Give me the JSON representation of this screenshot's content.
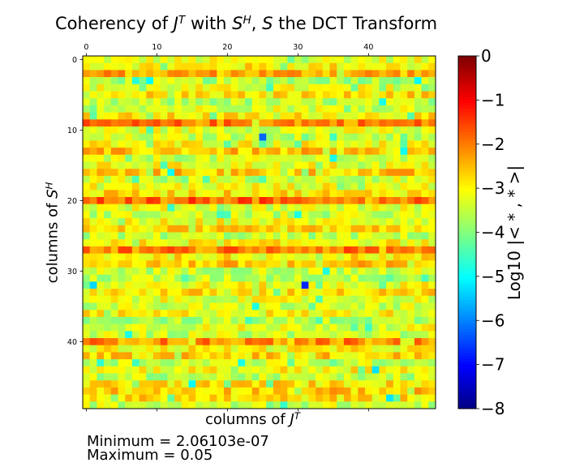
{
  "chart_data": {
    "type": "heatmap",
    "title": {
      "prefix": "Coherency of ",
      "j": "J",
      "j_sup": "T",
      "mid": " with ",
      "s": "S",
      "s_sup": "H",
      "comma": ", ",
      "s2": "S",
      "suffix": " the DCT Transform"
    },
    "xlabel": {
      "prefix": "columns of ",
      "var": "J",
      "sup": "T"
    },
    "ylabel": {
      "prefix": "columns of ",
      "var": "S",
      "sup": "H"
    },
    "colorbar": {
      "label": "Log10 |< * , * >|",
      "range": [
        -8,
        0
      ],
      "ticks": [
        0,
        -1,
        -2,
        -3,
        -4,
        -5,
        -6,
        -7,
        -8
      ],
      "tick_labels": [
        "0",
        "−1",
        "−2",
        "−3",
        "−4",
        "−5",
        "−6",
        "−7",
        "−8"
      ],
      "colormap": "jet"
    },
    "x_ticks": [
      0,
      10,
      20,
      30,
      40
    ],
    "y_ticks": [
      0,
      10,
      20,
      30,
      40
    ],
    "x_tick_position": "top",
    "grid": false,
    "n_rows": 50,
    "n_cols": 50,
    "row_profile": [
      -3.2,
      -2.9,
      -2.3,
      -3.6,
      -3.2,
      -2.8,
      -3.6,
      -3.2,
      -2.9,
      -2.0,
      -3.2,
      -3.4,
      -3.0,
      -2.6,
      -3.4,
      -3.1,
      -2.6,
      -3.3,
      -3.1,
      -2.8,
      -1.8,
      -3.2,
      -3.4,
      -3.1,
      -2.8,
      -3.5,
      -3.0,
      -2.0,
      -2.9,
      -2.6,
      -3.4,
      -3.5,
      -3.1,
      -2.8,
      -3.2,
      -3.4,
      -3.0,
      -3.6,
      -3.2,
      -3.4,
      -2.1,
      -3.0,
      -2.7,
      -3.4,
      -3.0,
      -3.5,
      -2.8,
      -2.6,
      -2.8,
      -3.4
    ],
    "notable_cells": [
      {
        "row": 11,
        "col": 25,
        "value": -6.2
      },
      {
        "row": 32,
        "col": 31,
        "value": -6.7
      },
      {
        "row": 32,
        "col": 1,
        "value": -5.3
      },
      {
        "row": 3,
        "col": 9,
        "value": -5.0
      },
      {
        "row": 16,
        "col": 12,
        "value": -4.9
      },
      {
        "row": 46,
        "col": 15,
        "value": -5.0
      },
      {
        "row": 48,
        "col": 43,
        "value": -5.2
      },
      {
        "row": 44,
        "col": 41,
        "value": -5.2
      },
      {
        "row": 13,
        "col": 45,
        "value": -4.9
      }
    ],
    "min_value": 2.06103e-07,
    "max_value": 0.05
  },
  "annotations": {
    "minimum": "Minimum = 2.06103e-07",
    "maximum": "Maximum = 0.05"
  }
}
